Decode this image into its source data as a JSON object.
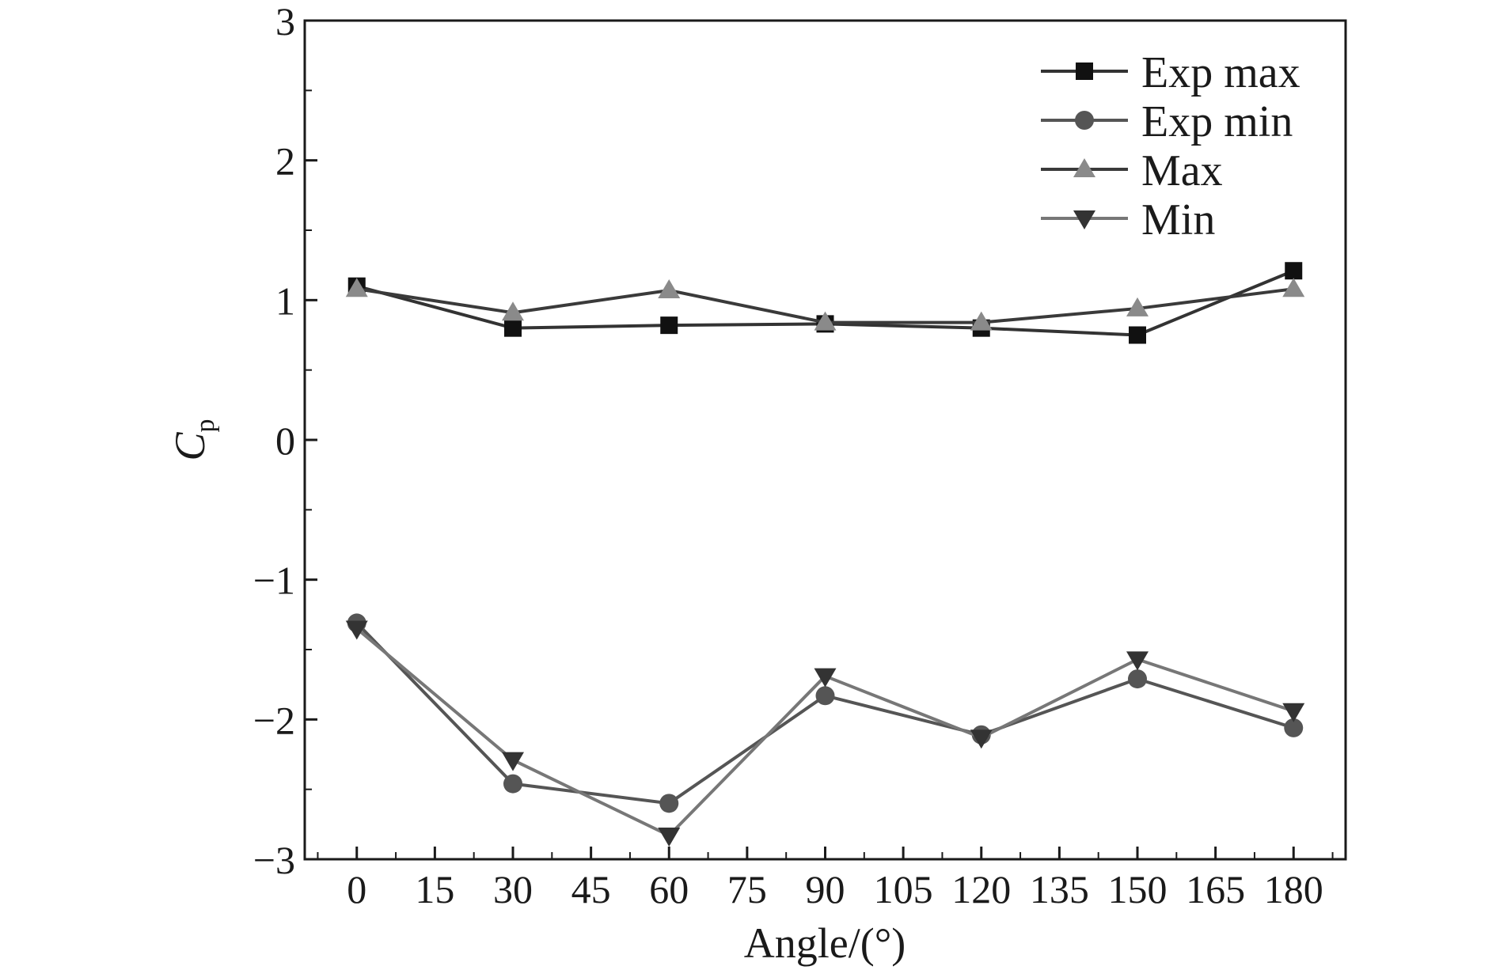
{
  "chart_data": {
    "type": "line",
    "title": "",
    "xlabel": "Angle/(°)",
    "ylabel": {
      "main": "C",
      "sub": "p"
    },
    "xlim": [
      -10,
      190
    ],
    "ylim": [
      -3,
      3
    ],
    "x_ticks": [
      0,
      15,
      30,
      45,
      60,
      75,
      90,
      105,
      120,
      135,
      150,
      165,
      180
    ],
    "x_tick_labels": [
      "0",
      "15",
      "30",
      "45",
      "60",
      "75",
      "90",
      "105",
      "120",
      "135",
      "150",
      "165",
      "180"
    ],
    "y_ticks": [
      -3,
      -2,
      -1,
      0,
      1,
      2,
      3
    ],
    "y_tick_labels": [
      "−3",
      "−2",
      "−1",
      "0",
      "1",
      "2",
      "3"
    ],
    "grid": false,
    "legend_position": "top-right",
    "x": [
      0,
      30,
      60,
      90,
      120,
      150,
      180
    ],
    "series": [
      {
        "name": "Exp max",
        "marker": "square",
        "line_color": "#333333",
        "marker_color": "#111111",
        "values": [
          1.1,
          0.8,
          0.82,
          0.83,
          0.8,
          0.75,
          1.21
        ]
      },
      {
        "name": "Exp min",
        "marker": "circle",
        "line_color": "#555555",
        "marker_color": "#555555",
        "values": [
          -1.31,
          -2.46,
          -2.6,
          -1.83,
          -2.11,
          -1.71,
          -2.06
        ]
      },
      {
        "name": "Max",
        "marker": "triangle-up",
        "line_color": "#3a3a3a",
        "marker_color": "#8a8a8a",
        "values": [
          1.08,
          0.91,
          1.07,
          0.84,
          0.84,
          0.94,
          1.08
        ]
      },
      {
        "name": "Min",
        "marker": "triangle-down",
        "line_color": "#777777",
        "marker_color": "#333333",
        "values": [
          -1.35,
          -2.29,
          -2.83,
          -1.69,
          -2.13,
          -1.57,
          -1.94
        ]
      }
    ]
  }
}
